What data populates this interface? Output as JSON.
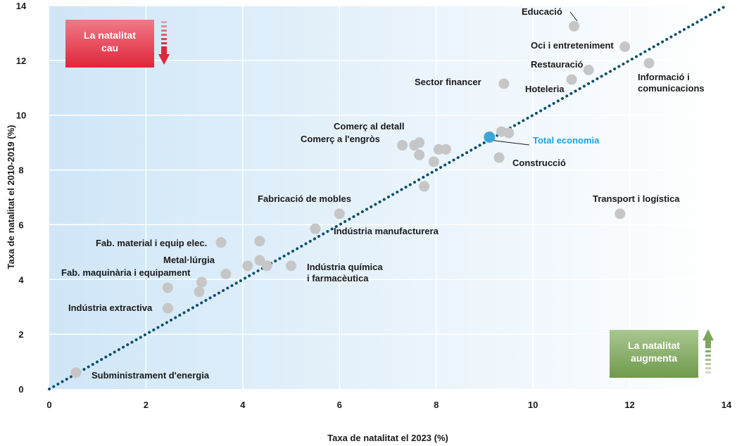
{
  "chart_data": {
    "type": "scatter",
    "xlabel": "Taxa de natalitat el 2023 (%)",
    "ylabel": "Taxa de natalitat el 2010-2019 (%)",
    "xlim": [
      0,
      14
    ],
    "ylim": [
      0,
      14
    ],
    "xticks": [
      0,
      2,
      4,
      6,
      8,
      10,
      12,
      14
    ],
    "yticks": [
      0,
      2,
      4,
      6,
      8,
      10,
      12,
      14
    ],
    "grid": true,
    "reference_line": {
      "type": "diagonal",
      "from": [
        0,
        0
      ],
      "to": [
        14,
        14
      ],
      "color": "#0b4f6c"
    },
    "colors": {
      "point": "#c6c6c6",
      "highlight": "#3aa6d8",
      "highlight_label": "#1ba3dc",
      "reference": "#0b4f6c"
    },
    "points": [
      {
        "label": "Educació",
        "x": 10.85,
        "y": 13.25
      },
      {
        "label": "Oci i entreteniment",
        "x": 11.9,
        "y": 12.5
      },
      {
        "label": "Informació i comunicacions",
        "x": 12.4,
        "y": 11.9
      },
      {
        "label": "Restauració",
        "x": 11.15,
        "y": 11.65
      },
      {
        "label": "Hoteleria",
        "x": 10.8,
        "y": 11.3
      },
      {
        "label": "Sector financer",
        "x": 9.4,
        "y": 11.15
      },
      {
        "label": "Comerç al detall",
        "x": 7.65,
        "y": 9.0
      },
      {
        "label": "Comerç a l'engròs",
        "x": 7.3,
        "y": 8.9
      },
      {
        "label": "",
        "x": 7.55,
        "y": 8.9
      },
      {
        "label": "",
        "x": 7.65,
        "y": 8.55
      },
      {
        "label": "",
        "x": 8.05,
        "y": 8.75
      },
      {
        "label": "",
        "x": 8.2,
        "y": 8.75
      },
      {
        "label": "",
        "x": 7.95,
        "y": 8.3
      },
      {
        "label": "",
        "x": 7.75,
        "y": 7.4
      },
      {
        "label": "",
        "x": 9.35,
        "y": 9.4
      },
      {
        "label": "",
        "x": 9.5,
        "y": 9.35
      },
      {
        "label": "Construcció",
        "x": 9.3,
        "y": 8.45
      },
      {
        "label": "Transport i logística",
        "x": 11.8,
        "y": 6.4
      },
      {
        "label": "Fabricació de mobles",
        "x": 6.0,
        "y": 6.4
      },
      {
        "label": "Indústria manufacturera",
        "x": 5.5,
        "y": 5.85
      },
      {
        "label": "Fab. material i equip elec.",
        "x": 3.55,
        "y": 5.35
      },
      {
        "label": "",
        "x": 4.35,
        "y": 5.4
      },
      {
        "label": "",
        "x": 4.35,
        "y": 4.7
      },
      {
        "label": "Metal·lúrgia",
        "x": 4.5,
        "y": 4.5
      },
      {
        "label": "",
        "x": 4.1,
        "y": 4.5
      },
      {
        "label": "Indústria química i farmacèutica",
        "x": 5.0,
        "y": 4.5
      },
      {
        "label": "",
        "x": 3.65,
        "y": 4.2
      },
      {
        "label": "Fab. maquinària i equipament",
        "x": 3.15,
        "y": 3.9
      },
      {
        "label": "",
        "x": 2.45,
        "y": 3.7
      },
      {
        "label": "",
        "x": 3.1,
        "y": 3.55
      },
      {
        "label": "Indústria extractiva",
        "x": 2.45,
        "y": 2.95
      },
      {
        "label": "Subministrament d'energia",
        "x": 0.55,
        "y": 0.6
      }
    ],
    "highlight": {
      "label": "Total economia",
      "x": 9.1,
      "y": 9.2
    },
    "annotations": [
      {
        "text_lines": [
          "La natalitat",
          "cau"
        ],
        "position": "top-left",
        "color": "#e0263a",
        "arrow": "down"
      },
      {
        "text_lines": [
          "La natalitat",
          "augmenta"
        ],
        "position": "bottom-right",
        "color": "#7fa55a",
        "arrow": "up"
      }
    ]
  }
}
